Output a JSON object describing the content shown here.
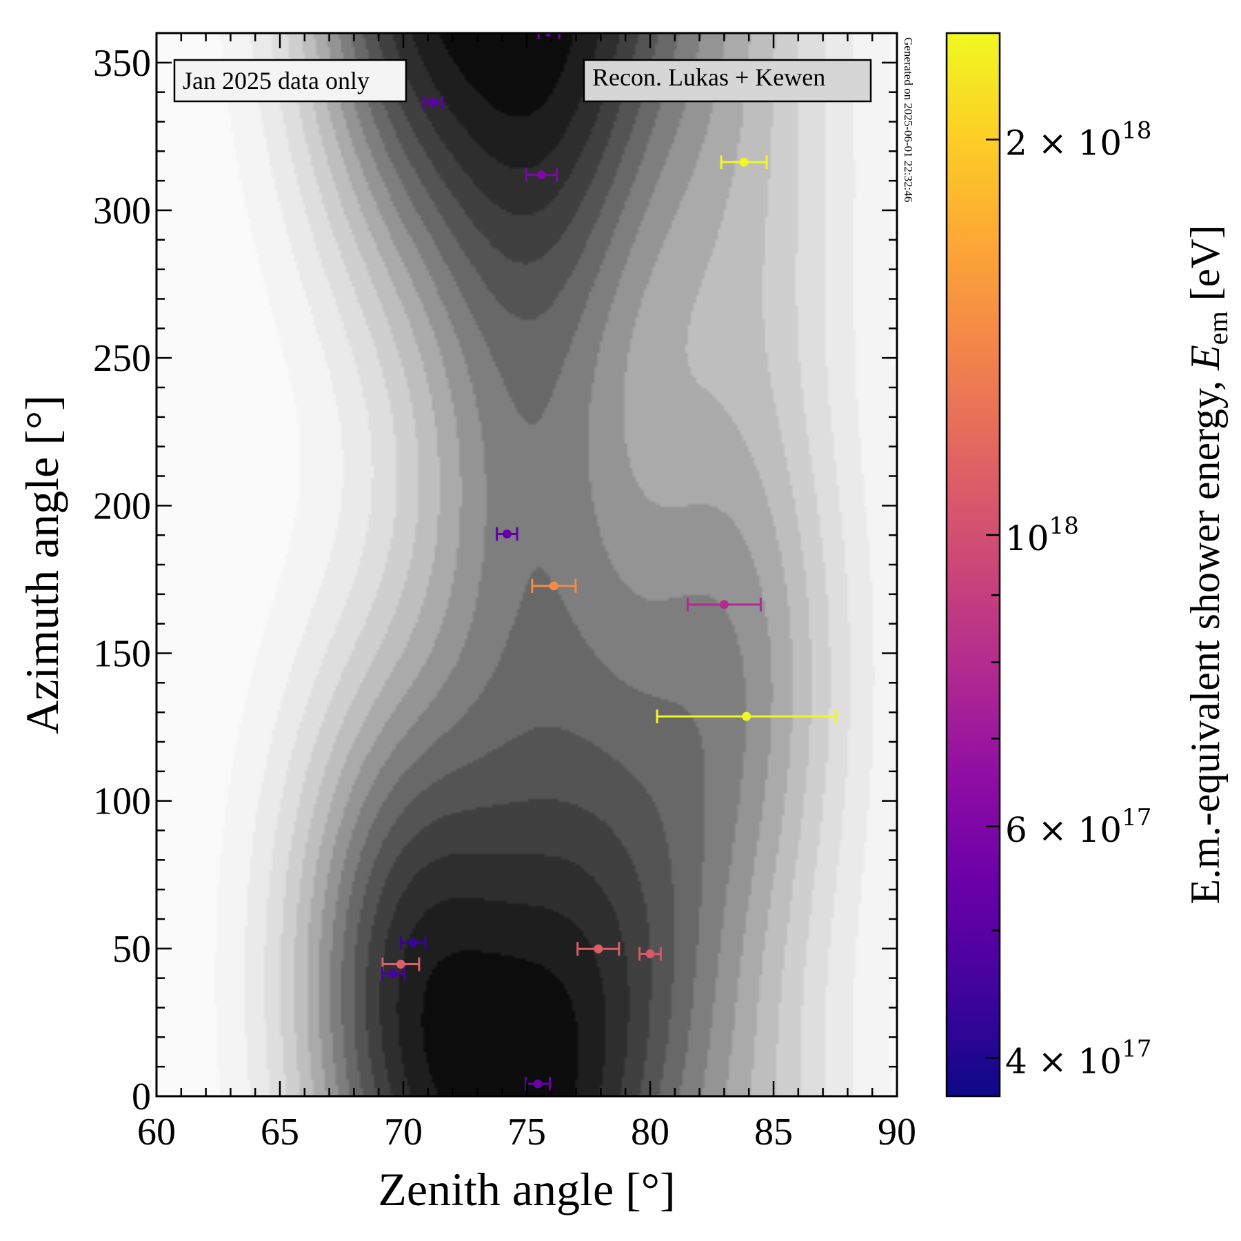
{
  "chart_data": {
    "type": "scatter",
    "title": "",
    "xlabel": "Zenith angle [°]",
    "ylabel": "Azimuth angle [°]",
    "xlim": [
      60,
      90
    ],
    "ylim": [
      0,
      360
    ],
    "xticks": [
      60,
      65,
      70,
      75,
      80,
      85,
      90
    ],
    "yticks": [
      0,
      50,
      100,
      150,
      200,
      250,
      300,
      350
    ],
    "xtick_labels": [
      "60",
      "65",
      "70",
      "75",
      "80",
      "85",
      "90"
    ],
    "ytick_labels": [
      "0",
      "50",
      "100",
      "150",
      "200",
      "250",
      "300",
      "350"
    ],
    "grid": false,
    "background": "filled density contours (grayscale) of event directions",
    "annotations": {
      "left_box": "Jan 2025 data only",
      "right_box": "Recon. Lukas + Kewen",
      "timestamp": "Generated on 2025-06-01 22:32:46"
    },
    "colorbar": {
      "label_prefix": "E.m.-equivalent shower energy, ",
      "label_symbol": "E",
      "label_subscript": "em",
      "label_unit": " [eV]",
      "scale": "log",
      "colormap": "plasma",
      "range": [
        3.74e+17,
        2.41e+18
      ],
      "major_ticks": [
        {
          "value": 4e+17,
          "mantissa": "4 × 10",
          "exponent": "17"
        },
        {
          "value": 6e+17,
          "mantissa": "6 × 10",
          "exponent": "17"
        },
        {
          "value": 1e+18,
          "mantissa": "10",
          "exponent": "18"
        },
        {
          "value": 2e+18,
          "mantissa": "2 × 10",
          "exponent": "18"
        }
      ],
      "minor_ticks": [
        5e+17,
        7e+17,
        8e+17,
        9e+17
      ]
    },
    "points": [
      {
        "zenith": 75.9,
        "azimuth": 360.3,
        "zenith_err": 0.42,
        "energy": 5.6e+17
      },
      {
        "zenith": 71.2,
        "azimuth": 336.5,
        "zenith_err": 0.38,
        "energy": 5.1e+17
      },
      {
        "zenith": 83.8,
        "azimuth": 316.3,
        "zenith_err": 0.92,
        "energy": 2.4e+18
      },
      {
        "zenith": 75.6,
        "azimuth": 312.0,
        "zenith_err": 0.62,
        "energy": 6e+17
      },
      {
        "zenith": 74.2,
        "azimuth": 190.4,
        "zenith_err": 0.41,
        "energy": 5.2e+17
      },
      {
        "zenith": 76.1,
        "azimuth": 172.8,
        "zenith_err": 0.88,
        "energy": 1.43e+18
      },
      {
        "zenith": 83.0,
        "azimuth": 166.5,
        "zenith_err": 1.48,
        "energy": 7.9e+17
      },
      {
        "zenith": 83.9,
        "azimuth": 128.6,
        "zenith_err": 3.62,
        "energy": 2.4e+18
      },
      {
        "zenith": 70.4,
        "azimuth": 52.0,
        "zenith_err": 0.5,
        "energy": 4.3e+17
      },
      {
        "zenith": 77.9,
        "azimuth": 49.9,
        "zenith_err": 0.84,
        "energy": 1.1e+18
      },
      {
        "zenith": 80.0,
        "azimuth": 48.2,
        "zenith_err": 0.43,
        "energy": 1.05e+18
      },
      {
        "zenith": 69.9,
        "azimuth": 44.7,
        "zenith_err": 0.74,
        "energy": 1.1e+18
      },
      {
        "zenith": 69.6,
        "azimuth": 41.5,
        "zenith_err": 0.45,
        "energy": 4.6e+17
      },
      {
        "zenith": 75.45,
        "azimuth": 4.2,
        "zenith_err": 0.49,
        "energy": 5.4e+17
      }
    ]
  }
}
